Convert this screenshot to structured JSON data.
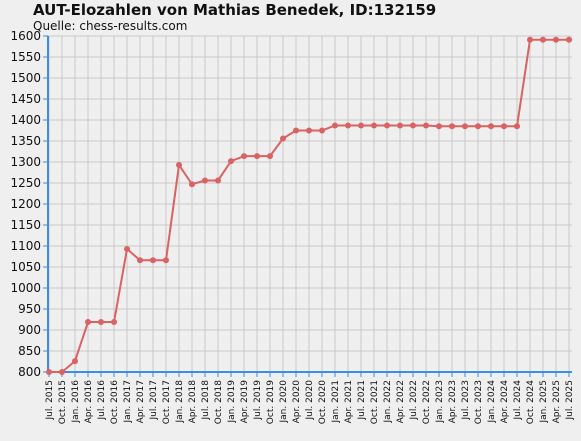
{
  "chart_data": {
    "type": "line",
    "title": "AUT-Elozahlen von Mathias Benedek, ID:132159",
    "subtitle": "Quelle: chess-results.com",
    "xlabel": "",
    "ylabel": "",
    "ylim": [
      800,
      1600
    ],
    "yticks": [
      800,
      850,
      900,
      950,
      1000,
      1050,
      1100,
      1150,
      1200,
      1250,
      1300,
      1350,
      1400,
      1450,
      1500,
      1550,
      1600
    ],
    "grid": true,
    "legend": "none",
    "categories": [
      "Jul. 2015",
      "Oct. 2015",
      "Jan. 2016",
      "Apr. 2016",
      "Jul. 2016",
      "Oct. 2016",
      "Jan. 2017",
      "Apr. 2017",
      "Jul. 2017",
      "Oct. 2017",
      "Jan. 2018",
      "Apr. 2018",
      "Jul. 2018",
      "Oct. 2018",
      "Jan. 2019",
      "Apr. 2019",
      "Jul. 2019",
      "Oct. 2019",
      "Jan. 2020",
      "Apr. 2020",
      "Jul. 2020",
      "Oct. 2020",
      "Jan. 2021",
      "Apr. 2021",
      "Jul. 2021",
      "Oct. 2021",
      "Jan. 2022",
      "Apr. 2022",
      "Jul. 2022",
      "Oct. 2022",
      "Jan. 2023",
      "Apr. 2023",
      "Jul. 2023",
      "Oct. 2023",
      "Jan. 2024",
      "Apr. 2024",
      "Jul. 2024",
      "Oct. 2024",
      "Jan. 2025",
      "Apr. 2025",
      "Jul. 2025"
    ],
    "series": [
      {
        "color": "#d96262",
        "values": [
          800,
          800,
          826,
          919,
          919,
          919,
          1093,
          1066,
          1066,
          1066,
          1293,
          1247,
          1256,
          1256,
          1302,
          1314,
          1314,
          1314,
          1356,
          1375,
          1375,
          1375,
          1387,
          1387,
          1387,
          1387,
          1387,
          1387,
          1387,
          1387,
          1385,
          1385,
          1385,
          1385,
          1385,
          1385,
          1385,
          1591,
          1591,
          1591,
          1591
        ]
      }
    ]
  }
}
